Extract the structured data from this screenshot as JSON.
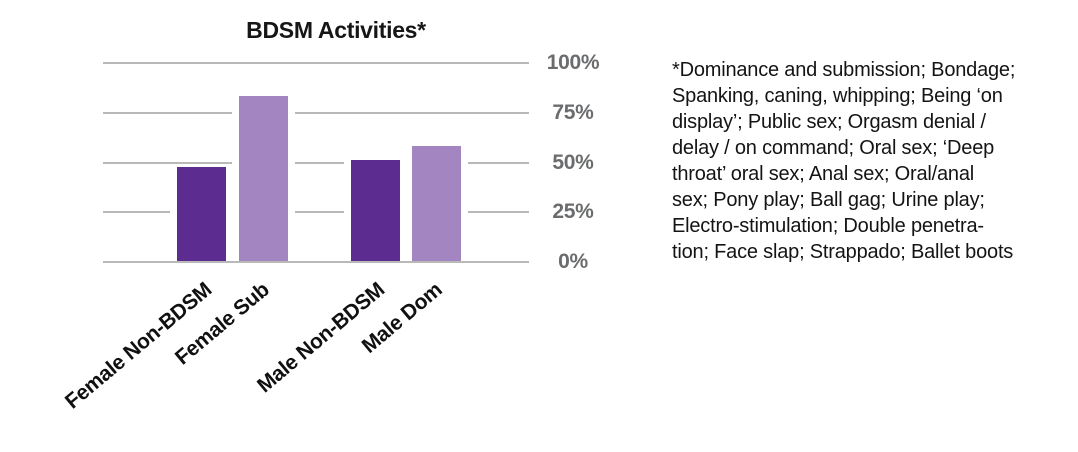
{
  "title": "BDSM Activities*",
  "annotation": {
    "text": "*Dominance and submission; Bondage;\nSpanking, caning, whipping; Being ‘on\ndisplay’; Public sex; Orgasm denial /\ndelay / on command; Oral sex; ‘Deep\nthroat’ oral sex; Anal sex; Oral/anal\nsex; Pony play; Ball gag; Urine play;\nElectro-stimulation; Double penetra-\ntion; Face slap; Strappado; Ballet boots"
  },
  "chart_data": {
    "type": "bar",
    "title": "BDSM Activities*",
    "categories": [
      "Female Non-BDSM",
      "Female Sub",
      "Male Non-BDSM",
      "Male Dom"
    ],
    "values": [
      47,
      83,
      51,
      58
    ],
    "unit": "%",
    "xlabel": "",
    "ylabel": "",
    "ylim": [
      0,
      100
    ],
    "ytick_values": [
      100,
      75,
      50,
      25,
      0
    ],
    "ytick_labels": [
      "100%",
      "75%",
      "50%",
      "25%",
      "0%"
    ],
    "grid": true,
    "legend": "none",
    "bar_colors": [
      "#5d2c90",
      "#a385c2",
      "#5d2c90",
      "#a385c2"
    ]
  },
  "colors": {
    "dark_purple": "#5d2c90",
    "light_purple": "#a385c2",
    "gridline": "#b9b9b9",
    "tick_label": "#6b6c6e",
    "text": "#141414"
  }
}
